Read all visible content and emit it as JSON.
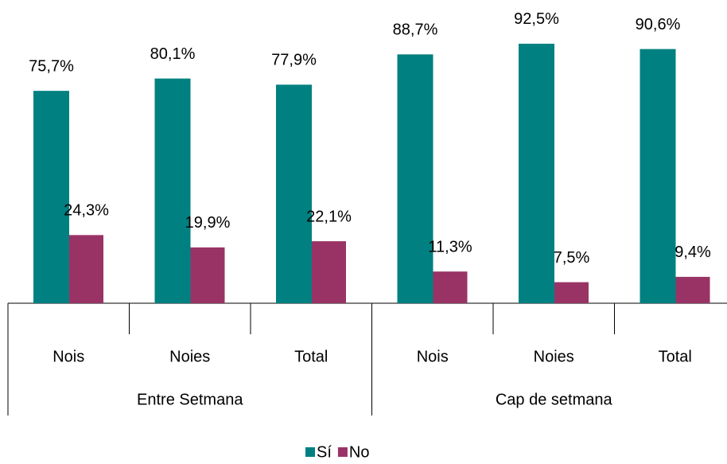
{
  "chart_data": {
    "type": "bar",
    "categories": [
      "Nois",
      "Noies",
      "Total",
      "Nois",
      "Noies",
      "Total"
    ],
    "groups": [
      "Entre Setmana",
      "Cap de setmana"
    ],
    "series": [
      {
        "name": "Sí",
        "color": "#008080",
        "values": [
          75.7,
          80.1,
          77.9,
          88.7,
          92.5,
          90.6
        ],
        "value_labels": [
          "75,7%",
          "80,1%",
          "77,9%",
          "88,7%",
          "92,5%",
          "90,6%"
        ]
      },
      {
        "name": "No",
        "color": "#993366",
        "values": [
          24.3,
          19.9,
          22.1,
          11.3,
          7.5,
          9.4
        ],
        "value_labels": [
          "24,3%",
          "19,9%",
          "22,1%",
          "11,3%",
          "7,5%",
          "9,4%"
        ]
      }
    ],
    "ylim": [
      0,
      100
    ],
    "legend": "bottom"
  }
}
